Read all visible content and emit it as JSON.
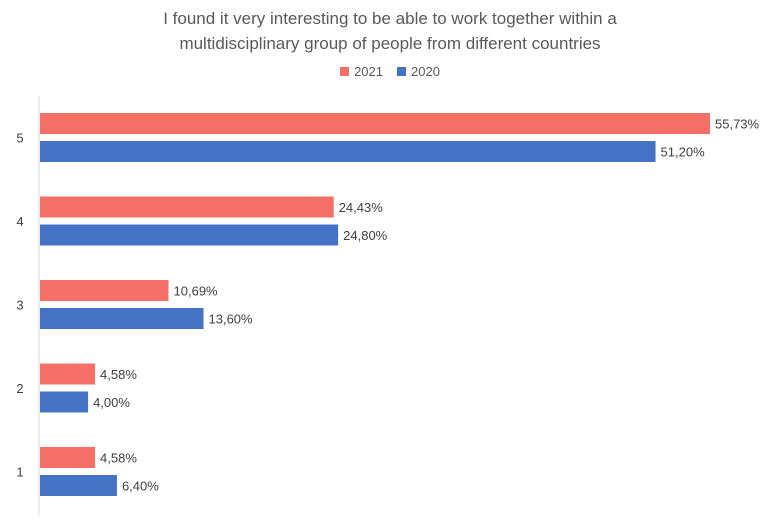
{
  "chart_data": {
    "type": "bar",
    "orientation": "horizontal",
    "title_lines": [
      "I found it very interesting to be able to work together within a",
      "multidisciplinary group of people from different countries"
    ],
    "xlabel": "",
    "ylabel": "",
    "categories": [
      "5",
      "4",
      "3",
      "2",
      "1"
    ],
    "series": [
      {
        "name": "2021",
        "color": "#f47066",
        "values": [
          55.73,
          24.43,
          10.69,
          4.58,
          4.58
        ],
        "labels": [
          "55,73%",
          "24,43%",
          "10,69%",
          "4,58%",
          "4,58%"
        ]
      },
      {
        "name": "2020",
        "color": "#4472c4",
        "values": [
          51.2,
          24.8,
          13.6,
          4.0,
          6.4
        ],
        "labels": [
          "51,20%",
          "24,80%",
          "13,60%",
          "4,00%",
          "6,40%"
        ]
      }
    ],
    "xlim": [
      0,
      60
    ],
    "grid": false,
    "legend_position": "top"
  }
}
